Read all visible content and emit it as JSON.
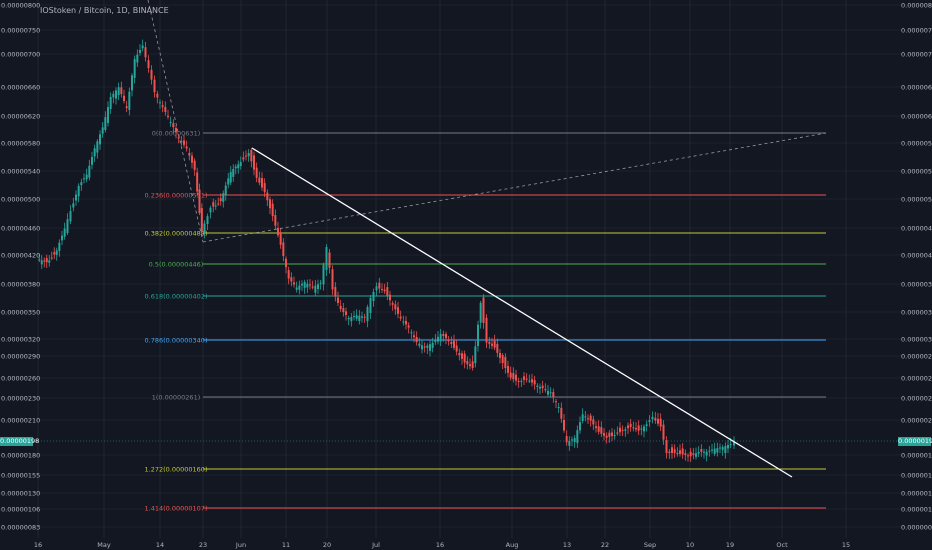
{
  "header": {
    "title": "IOStoken / Bitcoin, 1D, BINANCE"
  },
  "price_badge": "0.00000198",
  "colors": {
    "background": "#131722",
    "grid": "#2a2e39",
    "bull": "#26a69a",
    "bear": "#ef5350",
    "trendline": "#ffffff"
  },
  "chart_data": {
    "type": "candlestick",
    "symbol": "IOStoken / Bitcoin",
    "interval": "1D",
    "exchange": "BINANCE",
    "y_ticks": [
      "0.00000800",
      "0.00000750",
      "0.00000700",
      "0.00000660",
      "0.00000620",
      "0.00000580",
      "0.00000540",
      "0.00000500",
      "0.00000460",
      "0.00000420",
      "0.00000380",
      "0.00000350",
      "0.00000320",
      "0.00000290",
      "0.00000260",
      "0.00000230",
      "0.00000210",
      "0.00000180",
      "0.00000155",
      "0.00000130",
      "0.00000106",
      "0.00000083"
    ],
    "x_ticks": [
      "16",
      "May",
      "14",
      "23",
      "Jun",
      "11",
      "20",
      "Jul",
      "16",
      "Aug",
      "13",
      "22",
      "Sep",
      "10",
      "19",
      "Oct",
      "15"
    ],
    "last_price": 1.98e-06,
    "fib_levels": [
      {
        "label": "0(0.00000631)",
        "ratio": 0,
        "price": 6.31e-06,
        "color": "#787b86"
      },
      {
        "label": "0.236(0.00000551)",
        "ratio": 0.236,
        "price": 5.51e-06,
        "color": "#ef5350"
      },
      {
        "label": "0.382(0.00000489)",
        "ratio": 0.382,
        "price": 4.89e-06,
        "color": "#c0ca33"
      },
      {
        "label": "0.5(0.00000446)",
        "ratio": 0.5,
        "price": 4.46e-06,
        "color": "#4caf50"
      },
      {
        "label": "0.618(0.00000402)",
        "ratio": 0.618,
        "price": 4.02e-06,
        "color": "#26a69a"
      },
      {
        "label": "0.786(0.00000340)",
        "ratio": 0.786,
        "price": 3.4e-06,
        "color": "#42a5f5"
      },
      {
        "label": "1(0.00000261)",
        "ratio": 1,
        "price": 2.61e-06,
        "color": "#787b86"
      },
      {
        "label": "1.272(0.00000160)",
        "ratio": 1.272,
        "price": 1.6e-06,
        "color": "#c0ca33"
      },
      {
        "label": "1.414(0.00000107)",
        "ratio": 1.414,
        "price": 1.07e-06,
        "color": "#ef5350"
      }
    ],
    "trendline": {
      "from_price": 6.15e-06,
      "to_price": 1.55e-06
    },
    "legend": "none",
    "grid": true
  }
}
